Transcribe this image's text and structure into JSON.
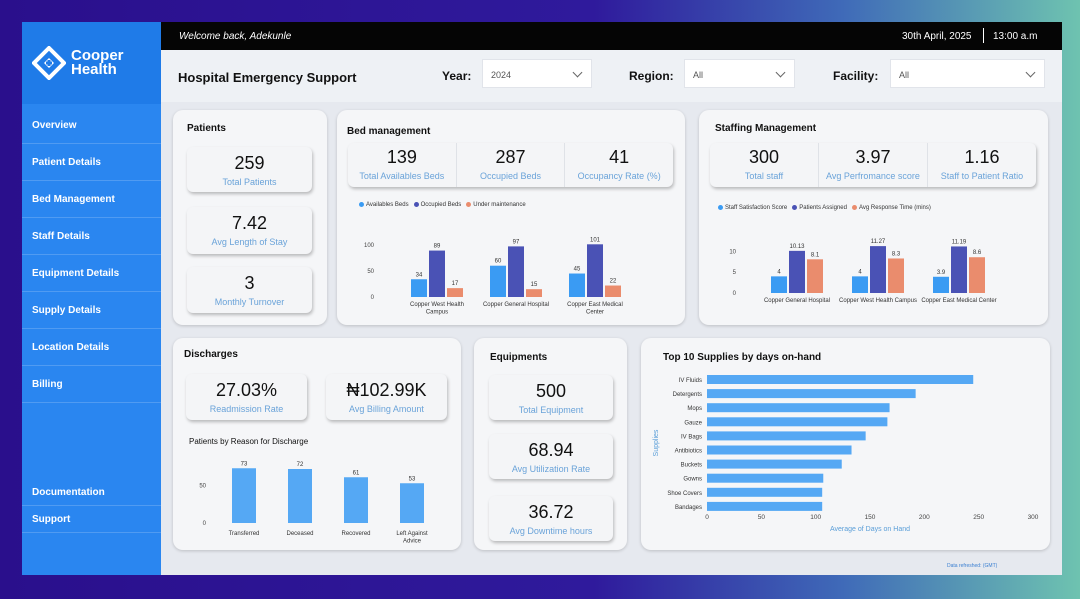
{
  "brand": {
    "line1": "Cooper",
    "line2": "Health"
  },
  "nav": [
    "Overview",
    "Patient Details",
    "Bed Management",
    "Staff Details",
    "Equipment Details",
    "Supply Details",
    "Location Details",
    "Billing"
  ],
  "nav_bottom": [
    "Documentation",
    "Support"
  ],
  "topbar": {
    "welcome": "Welcome back, Adekunle",
    "date": "30th April, 2025",
    "time": "13:00 a.m"
  },
  "header": {
    "title": "Hospital Emergency Support",
    "year_label": "Year:",
    "year_value": "2024",
    "region_label": "Region:",
    "region_value": "All",
    "facility_label": "Facility:",
    "facility_value": "All"
  },
  "patients": {
    "title": "Patients",
    "kpis": [
      {
        "value": "259",
        "label": "Total Patients"
      },
      {
        "value": "7.42",
        "label": "Avg Length of Stay"
      },
      {
        "value": "3",
        "label": "Monthly Turnover"
      }
    ]
  },
  "beds": {
    "title": "Bed management",
    "kpis": [
      {
        "value": "139",
        "label": "Total Availables Beds"
      },
      {
        "value": "287",
        "label": "Occupied Beds"
      },
      {
        "value": "41",
        "label": "Occupancy Rate (%)"
      }
    ]
  },
  "staffing": {
    "title": "Staffing Management",
    "kpis": [
      {
        "value": "300",
        "label": "Total staff"
      },
      {
        "value": "3.97",
        "label": "Avg Perfromance score"
      },
      {
        "value": "1.16",
        "label": "Staff to Patient Ratio"
      }
    ]
  },
  "discharges": {
    "title": "Discharges",
    "kpis": [
      {
        "value": "27.03%",
        "label": "Readmission Rate"
      },
      {
        "value": "₦102.99K",
        "label": "Avg Billing Amount"
      }
    ]
  },
  "equipments": {
    "title": "Equipments",
    "kpis": [
      {
        "value": "500",
        "label": "Total Equipment"
      },
      {
        "value": "68.94",
        "label": "Avg Utilization Rate"
      },
      {
        "value": "36.72",
        "label": "Avg Downtime hours"
      }
    ]
  },
  "supplies": {
    "title": "Top 10 Supplies by days on-hand"
  },
  "refresh_note": "Data refreshed: (GMT)",
  "colors": {
    "blue": "#3a9bf3",
    "indigo": "#4a52b5",
    "orange": "#ea8c6d",
    "bar_light": "#55a8f4"
  },
  "chart_data": [
    {
      "type": "bar",
      "categories": [
        "Copper West Health Campus",
        "Copper General Hospital",
        "Copper East Medical Center"
      ],
      "series": [
        {
          "name": "Availables Beds",
          "values": [
            34,
            60,
            45
          ]
        },
        {
          "name": "Occupied Beds",
          "values": [
            89,
            97,
            101
          ]
        },
        {
          "name": "Under maintenance",
          "values": [
            17,
            15,
            22
          ]
        }
      ],
      "yticks": [
        0,
        50,
        100
      ],
      "ylim": [
        0,
        115
      ],
      "legend": "top-left"
    },
    {
      "type": "bar",
      "categories": [
        "Copper General Hospital",
        "Copper West Health Campus",
        "Copper East Medical Center"
      ],
      "series": [
        {
          "name": "Staff Satisfaction Score",
          "values": [
            4.0,
            4.0,
            3.9
          ]
        },
        {
          "name": "Patients Assigned",
          "values": [
            10.13,
            11.27,
            11.19
          ]
        },
        {
          "name": "Avg Response Time (mins)",
          "values": [
            8.1,
            8.3,
            8.6
          ]
        }
      ],
      "yticks": [
        0,
        5,
        10
      ],
      "ylim": [
        0,
        12.5
      ],
      "legend": "top-left"
    },
    {
      "type": "bar",
      "title": "Patients by Reason for Discharge",
      "categories": [
        "Transferred",
        "Deceased",
        "Recovered",
        "Left Against Advice"
      ],
      "values": [
        73,
        72,
        61,
        53
      ],
      "yticks": [
        0,
        50
      ],
      "ylim": [
        0,
        80
      ]
    },
    {
      "type": "bar",
      "orientation": "horizontal",
      "categories": [
        "IV Fluids",
        "Detergents",
        "Mops",
        "Gauze",
        "IV Bags",
        "Antibiotics",
        "Buckets",
        "Gowns",
        "Shoe Covers",
        "Bandages"
      ],
      "values": [
        245,
        192,
        168,
        166,
        146,
        133,
        124,
        107,
        106,
        106
      ],
      "xticks": [
        0,
        50,
        100,
        150,
        200,
        250,
        300
      ],
      "xlim": [
        0,
        300
      ],
      "xlabel": "Average of Days on Hand",
      "ylabel": "Supplies"
    }
  ]
}
